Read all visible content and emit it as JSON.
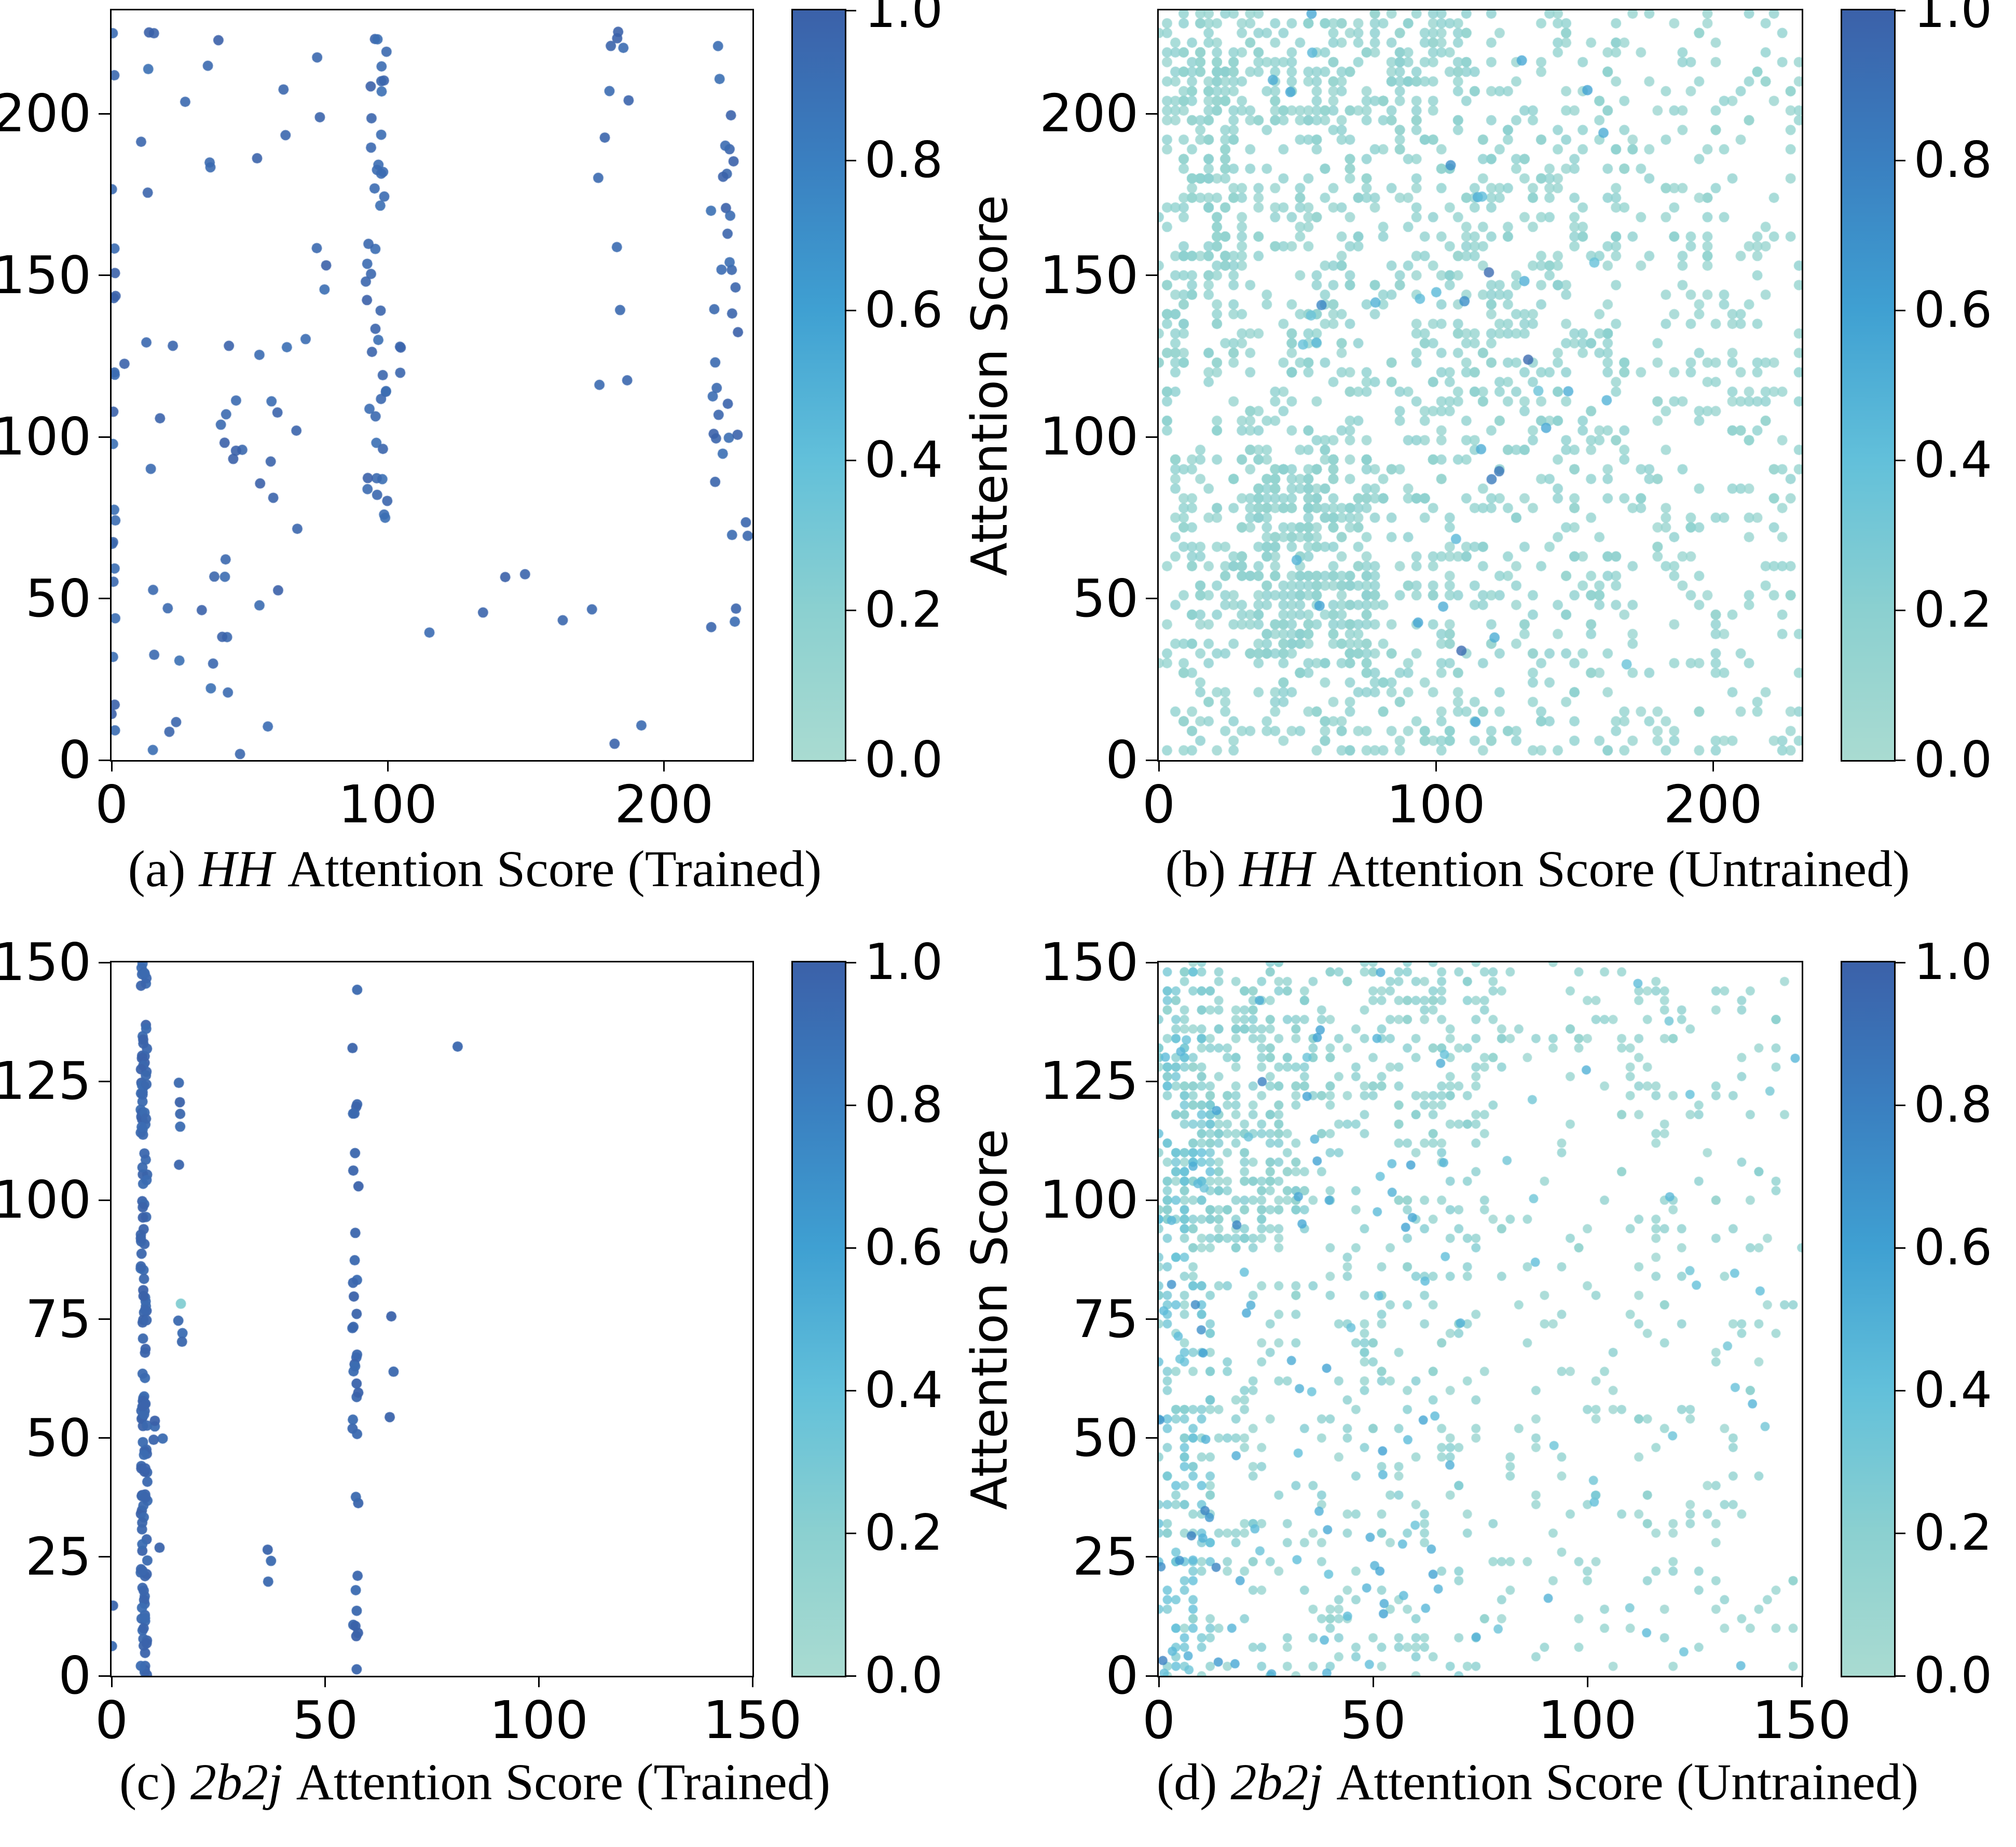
{
  "colorbar": {
    "label": "Attention Score",
    "ticks": [
      1.0,
      0.8,
      0.6,
      0.4,
      0.2,
      0.0
    ]
  },
  "colormap_stops": [
    [
      0.0,
      "#a9dbd1"
    ],
    [
      0.2,
      "#8bd0d0"
    ],
    [
      0.4,
      "#62c0da"
    ],
    [
      0.6,
      "#3fa0d2"
    ],
    [
      0.8,
      "#3a7fc0"
    ],
    [
      1.0,
      "#3b61a9"
    ]
  ],
  "chart_data": [
    {
      "id": "a",
      "type": "scatter",
      "caption": {
        "index": "(a)",
        "math": "HH",
        "rest": "Attention Score (Trained)"
      },
      "xlabel": "",
      "ylabel": "",
      "grid": false,
      "xlim": [
        0,
        232
      ],
      "ylim": [
        0,
        232
      ],
      "xticks": [
        0,
        100,
        200
      ],
      "yticks": [
        0,
        50,
        100,
        150,
        200
      ],
      "marker_radius": 10,
      "alpha": 0.9,
      "seed": 7,
      "point_groups": [
        {
          "n": 22,
          "x": [
            0,
            1.5
          ],
          "y": [
            0,
            230
          ],
          "score": [
            0.9,
            1.0
          ]
        },
        {
          "n": 5,
          "x": [
            10,
            16
          ],
          "y": [
            150,
            228
          ],
          "score": [
            0.9,
            1.0
          ]
        },
        {
          "n": 42,
          "x": [
            3,
            72
          ],
          "y": [
            0,
            130
          ],
          "score": [
            0.9,
            1.0
          ]
        },
        {
          "n": 14,
          "x": [
            18,
            80
          ],
          "y": [
            130,
            232
          ],
          "score": [
            0.9,
            1.0
          ]
        },
        {
          "n": 44,
          "x": [
            92,
            100
          ],
          "y": [
            70,
            232
          ],
          "score": [
            0.9,
            1.0
          ]
        },
        {
          "n": 3,
          "x": [
            100,
            115
          ],
          "y": [
            118,
            136
          ],
          "score": [
            0.9,
            1.0
          ]
        },
        {
          "n": 34,
          "x": [
            217,
            227
          ],
          "y": [
            40,
            222
          ],
          "score": [
            0.9,
            1.0
          ]
        },
        {
          "n": 12,
          "x": [
            176,
            190
          ],
          "y": [
            110,
            232
          ],
          "score": [
            0.9,
            1.0
          ]
        },
        {
          "n": 8,
          "x": [
            100,
            200
          ],
          "y": [
            0,
            60
          ],
          "score": [
            0.9,
            1.0
          ]
        },
        {
          "n": 2,
          "x": [
            228,
            232
          ],
          "y": [
            60,
            80
          ],
          "score": [
            0.9,
            1.0
          ]
        }
      ]
    },
    {
      "id": "b",
      "type": "scatter",
      "caption": {
        "index": "(b)",
        "math": "HH",
        "rest": "Attention Score (Untrained)"
      },
      "xlabel": "",
      "ylabel": "",
      "grid": false,
      "xlim": [
        0,
        232
      ],
      "ylim": [
        0,
        232
      ],
      "xticks": [
        0,
        100,
        200
      ],
      "yticks": [
        0,
        50,
        100,
        150,
        200
      ],
      "marker_radius": 10,
      "alpha": 0.8,
      "seed": 13,
      "point_groups": [
        {
          "n": 260,
          "x": [
            1,
            112
          ],
          "y": [
            196,
            232
          ],
          "score": [
            0.1,
            0.2
          ],
          "quantize": 3
        },
        {
          "n": 780,
          "x": [
            1,
            112
          ],
          "y": [
            2,
            196
          ],
          "score": [
            0.1,
            0.2
          ],
          "quantize": 3
        },
        {
          "n": 230,
          "x": [
            30,
            78
          ],
          "y": [
            28,
            95
          ],
          "score": [
            0.1,
            0.2
          ],
          "quantize": 3
        },
        {
          "n": 420,
          "x": [
            112,
            168
          ],
          "y": [
            2,
            232
          ],
          "score": [
            0.1,
            0.2
          ],
          "quantize": 3
        },
        {
          "n": 300,
          "x": [
            168,
            232
          ],
          "y": [
            2,
            232
          ],
          "score": [
            0.08,
            0.18
          ],
          "quantize": 3
        },
        {
          "n": 120,
          "x": [
            1,
            30
          ],
          "y": [
            120,
            215
          ],
          "score": [
            0.1,
            0.2
          ],
          "quantize": 3
        },
        {
          "n": 30,
          "x": [
            40,
            170
          ],
          "y": [
            2,
            232
          ],
          "score": [
            0.35,
            0.6
          ]
        },
        {
          "n": 8,
          "x": [
            55,
            135
          ],
          "y": [
            10,
            200
          ],
          "score": [
            0.7,
            0.95
          ]
        }
      ]
    },
    {
      "id": "c",
      "type": "scatter",
      "caption": {
        "index": "(c)",
        "math": "2b2j",
        "rest": "Attention Score (Trained)"
      },
      "xlabel": "",
      "ylabel": "",
      "grid": false,
      "xlim": [
        0,
        150
      ],
      "ylim": [
        0,
        150
      ],
      "xticks": [
        0,
        50,
        100,
        150
      ],
      "yticks": [
        0,
        25,
        50,
        75,
        100,
        125,
        150
      ],
      "marker_radius": 10,
      "alpha": 0.95,
      "seed": 5,
      "point_groups": [
        {
          "n": 150,
          "x": [
            6.8,
            8.4
          ],
          "y": [
            0,
            150
          ],
          "score": [
            0.92,
            1.0
          ]
        },
        {
          "n": 38,
          "x": [
            56.3,
            57.8
          ],
          "y": [
            0,
            147
          ],
          "score": [
            0.92,
            1.0
          ]
        },
        {
          "n": 5,
          "x": [
            15.6,
            16.6
          ],
          "y": [
            107,
            125
          ],
          "score": [
            0.92,
            1.0
          ]
        },
        {
          "n": 3,
          "x": [
            15.6,
            16.6
          ],
          "y": [
            70,
            78
          ],
          "score": [
            0.92,
            1.0
          ]
        },
        {
          "n": 1,
          "x": [
            15.8,
            16.4
          ],
          "y": [
            76,
            78.5
          ],
          "score": [
            0.15,
            0.25
          ]
        },
        {
          "n": 3,
          "x": [
            64.8,
            66.6
          ],
          "y": [
            48,
            88
          ],
          "score": [
            0.92,
            1.0
          ]
        },
        {
          "n": 3,
          "x": [
            36.4,
            38.2
          ],
          "y": [
            12,
            36
          ],
          "score": [
            0.92,
            1.0
          ]
        },
        {
          "n": 5,
          "x": [
            9,
            12.5
          ],
          "y": [
            4,
            68
          ],
          "score": [
            0.92,
            1.0
          ]
        },
        {
          "n": 1,
          "x": [
            81,
            82.3
          ],
          "y": [
            130.5,
            132.5
          ],
          "score": [
            0.92,
            1.0
          ]
        },
        {
          "n": 2,
          "x": [
            0,
            0.7
          ],
          "y": [
            6,
            17
          ],
          "score": [
            0.92,
            1.0
          ]
        }
      ]
    },
    {
      "id": "d",
      "type": "scatter",
      "caption": {
        "index": "(d)",
        "math": "2b2j",
        "rest": "Attention Score (Untrained)"
      },
      "xlabel": "",
      "ylabel": "",
      "grid": false,
      "xlim": [
        0,
        150
      ],
      "ylim": [
        0,
        150
      ],
      "xticks": [
        0,
        50,
        100,
        150
      ],
      "yticks": [
        0,
        25,
        50,
        75,
        100,
        125,
        150
      ],
      "marker_radius": 9,
      "alpha": 0.8,
      "seed": 21,
      "point_groups": [
        {
          "n": 300,
          "x": [
            0,
            34
          ],
          "y": [
            90,
            150
          ],
          "score": [
            0.1,
            0.25
          ],
          "quantize": 2
        },
        {
          "n": 260,
          "x": [
            0,
            13
          ],
          "y": [
            0,
            150
          ],
          "score": [
            0.12,
            0.4
          ],
          "quantize": 2
        },
        {
          "n": 300,
          "x": [
            13,
            75
          ],
          "y": [
            0,
            112
          ],
          "score": [
            0.1,
            0.25
          ],
          "quantize": 2
        },
        {
          "n": 170,
          "x": [
            34,
            80
          ],
          "y": [
            112,
            150
          ],
          "score": [
            0.1,
            0.22
          ],
          "quantize": 2
        },
        {
          "n": 240,
          "x": [
            75,
            150
          ],
          "y": [
            0,
            150
          ],
          "score": [
            0.08,
            0.2
          ],
          "quantize": 2
        },
        {
          "n": 40,
          "x": [
            95,
            145
          ],
          "y": [
            115,
            150
          ],
          "score": [
            0.1,
            0.18
          ],
          "quantize": 2
        },
        {
          "n": 90,
          "x": [
            0,
            75
          ],
          "y": [
            0,
            150
          ],
          "score": [
            0.35,
            0.6
          ]
        },
        {
          "n": 30,
          "x": [
            75,
            150
          ],
          "y": [
            0,
            150
          ],
          "score": [
            0.3,
            0.55
          ]
        },
        {
          "n": 14,
          "x": [
            0,
            30
          ],
          "y": [
            0,
            130
          ],
          "score": [
            0.62,
            0.85
          ]
        }
      ]
    }
  ]
}
